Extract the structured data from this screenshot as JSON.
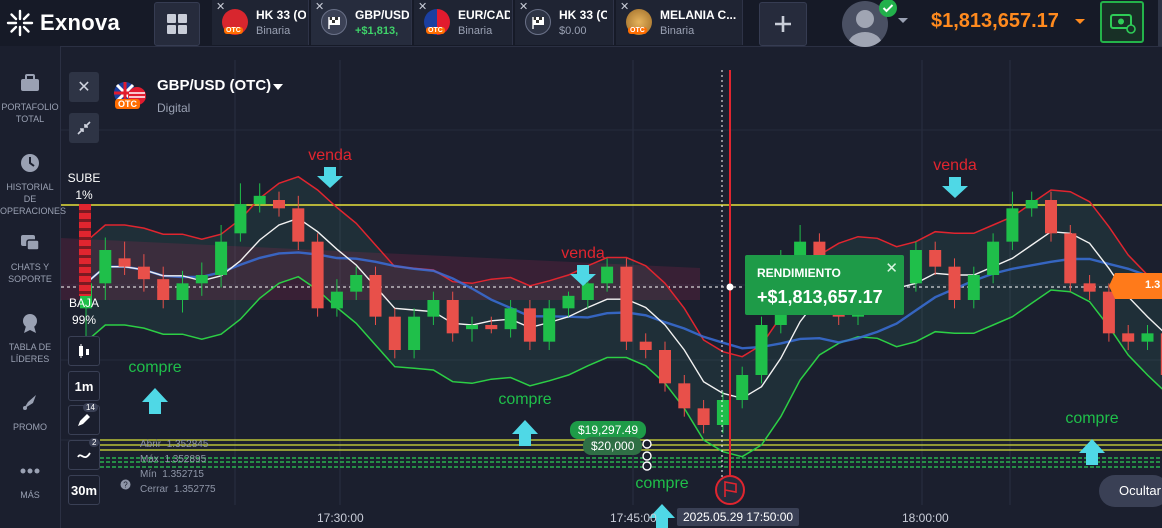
{
  "brand": {
    "name": "Exnova"
  },
  "tabs": [
    {
      "name": "HK 33 (OTC)",
      "sub": "Binaria",
      "otc": "OTC",
      "icon": "hk-flag-icon"
    },
    {
      "name": "GBP/USD",
      "sub": "+$1,813,",
      "icon": "checkered-flag-icon"
    },
    {
      "name": "EUR/CAD",
      "sub": "Binaria",
      "otc": "OTC",
      "icon": "eu-ca-flag-icon"
    },
    {
      "name": "HK 33 (OTC)",
      "sub": "$0.00",
      "icon": "checkered-flag-icon"
    },
    {
      "name": "MELANIA C...",
      "sub": "Binaria",
      "otc": "OTC",
      "icon": "melania-coin-icon"
    }
  ],
  "balance": "$1,813,657.17",
  "sidebar": [
    {
      "label": "PORTAFOLIO TOTAL",
      "icon": "briefcase-icon"
    },
    {
      "label": "HISTORIAL DE OPERACIONES",
      "icon": "clock-icon"
    },
    {
      "label": "CHATS Y SOPORTE",
      "icon": "chat-icon"
    },
    {
      "label": "TABLA DE LÍDERES",
      "icon": "trophy-icon"
    },
    {
      "label": "PROMO",
      "icon": "rocket-icon"
    },
    {
      "label": "MÁS",
      "icon": "more-dots-icon"
    }
  ],
  "asset": {
    "name": "GBP/USD (OTC)",
    "otc": "OTC",
    "type": "Digital"
  },
  "sentiment": {
    "up_label": "SUBE",
    "up_pct": "1%",
    "down_label": "BAJA",
    "down_pct": "99%"
  },
  "timeframes": {
    "tf1": "1m",
    "tf2": "30m",
    "badge1": "14",
    "badge2": "2"
  },
  "ohlc": [
    {
      "label": "Abrir",
      "value": "1.352845"
    },
    {
      "label": "Máx",
      "value": "1.352895"
    },
    {
      "label": "Mín",
      "value": "1.352715"
    },
    {
      "label": "Cerrar",
      "value": "1.352775"
    }
  ],
  "signals": [
    {
      "text": "venda",
      "color": "#e0252f"
    },
    {
      "text": "venda",
      "color": "#e0252f"
    },
    {
      "text": "venda",
      "color": "#e0252f"
    },
    {
      "text": "compre",
      "color": "#1fbf4a"
    },
    {
      "text": "compre",
      "color": "#1fbf4a"
    },
    {
      "text": "compre",
      "color": "#1fbf4a"
    },
    {
      "text": "compre",
      "color": "#1fbf4a"
    }
  ],
  "rendimiento": {
    "title": "RENDIMIENTO",
    "value": "+$1,813,657.17"
  },
  "trade_pills": {
    "p1": "$19,297.49",
    "p2": "$20,000"
  },
  "price_tag": "1.3",
  "time_axis": {
    "t1": "17:30:00",
    "t2": "17:45:00",
    "t3": "18:00:00",
    "current": "2025.05.29 17:50:00"
  },
  "hide_button": "Ocultar",
  "colors": {
    "up": "#1fbf4a",
    "down": "#e0252f",
    "accent": "#ff8a1e",
    "bg": "#1b1f2e"
  },
  "candles": [
    [
      0,
      20,
      26,
      12,
      29
    ],
    [
      1,
      26,
      34,
      22,
      37
    ],
    [
      2,
      32,
      30,
      28,
      36
    ],
    [
      3,
      30,
      27,
      24,
      33
    ],
    [
      4,
      27,
      22,
      20,
      30
    ],
    [
      5,
      22,
      26,
      19,
      29
    ],
    [
      6,
      26,
      28,
      23,
      31
    ],
    [
      7,
      28,
      36,
      25,
      40
    ],
    [
      8,
      38,
      45,
      36,
      50
    ],
    [
      9,
      45,
      47,
      43,
      50
    ],
    [
      10,
      46,
      44,
      42,
      48
    ],
    [
      11,
      44,
      36,
      34,
      47
    ],
    [
      12,
      36,
      20,
      18,
      38
    ],
    [
      13,
      20,
      24,
      18,
      27
    ],
    [
      14,
      24,
      28,
      22,
      30
    ],
    [
      15,
      28,
      18,
      16,
      30
    ],
    [
      16,
      18,
      10,
      8,
      20
    ],
    [
      17,
      10,
      18,
      8,
      20
    ],
    [
      18,
      18,
      22,
      16,
      24
    ],
    [
      19,
      22,
      14,
      12,
      24
    ],
    [
      20,
      15,
      16,
      12,
      18
    ],
    [
      21,
      16,
      15,
      14,
      18
    ],
    [
      22,
      15,
      20,
      13,
      22
    ],
    [
      23,
      20,
      12,
      10,
      22
    ],
    [
      24,
      12,
      20,
      10,
      22
    ],
    [
      25,
      20,
      23,
      18,
      24
    ],
    [
      26,
      22,
      26,
      20,
      28
    ],
    [
      27,
      26,
      30,
      24,
      32
    ],
    [
      28,
      30,
      12,
      10,
      32
    ],
    [
      29,
      12,
      10,
      8,
      14
    ],
    [
      30,
      10,
      2,
      0,
      12
    ],
    [
      31,
      2,
      -4,
      -6,
      4
    ],
    [
      32,
      -4,
      -8,
      -10,
      -2
    ],
    [
      33,
      -8,
      -2,
      -10,
      0
    ],
    [
      34,
      -2,
      4,
      -4,
      6
    ],
    [
      35,
      4,
      16,
      2,
      18
    ],
    [
      36,
      16,
      30,
      14,
      34
    ],
    [
      37,
      30,
      36,
      28,
      40
    ],
    [
      38,
      36,
      28,
      26,
      38
    ],
    [
      39,
      28,
      18,
      16,
      30
    ],
    [
      40,
      18,
      24,
      16,
      26
    ],
    [
      41,
      24,
      28,
      22,
      30
    ],
    [
      42,
      28,
      26,
      24,
      30
    ],
    [
      43,
      26,
      34,
      24,
      36
    ],
    [
      44,
      34,
      30,
      28,
      36
    ],
    [
      45,
      30,
      22,
      20,
      32
    ],
    [
      46,
      22,
      28,
      20,
      30
    ],
    [
      47,
      28,
      36,
      26,
      38
    ],
    [
      48,
      36,
      44,
      34,
      48
    ],
    [
      49,
      44,
      46,
      42,
      48
    ],
    [
      50,
      46,
      38,
      36,
      48
    ],
    [
      51,
      38,
      26,
      24,
      40
    ],
    [
      52,
      26,
      24,
      22,
      28
    ],
    [
      53,
      24,
      14,
      12,
      26
    ],
    [
      54,
      14,
      12,
      10,
      16
    ],
    [
      55,
      12,
      14,
      10,
      16
    ],
    [
      56,
      14,
      4,
      2,
      16
    ],
    [
      57,
      4,
      -4,
      -6,
      6
    ],
    [
      58,
      -4,
      6,
      -6,
      8
    ],
    [
      59,
      6,
      18,
      4,
      20
    ],
    [
      60,
      18,
      20,
      16,
      22
    ],
    [
      61,
      20,
      30,
      18,
      32
    ]
  ]
}
